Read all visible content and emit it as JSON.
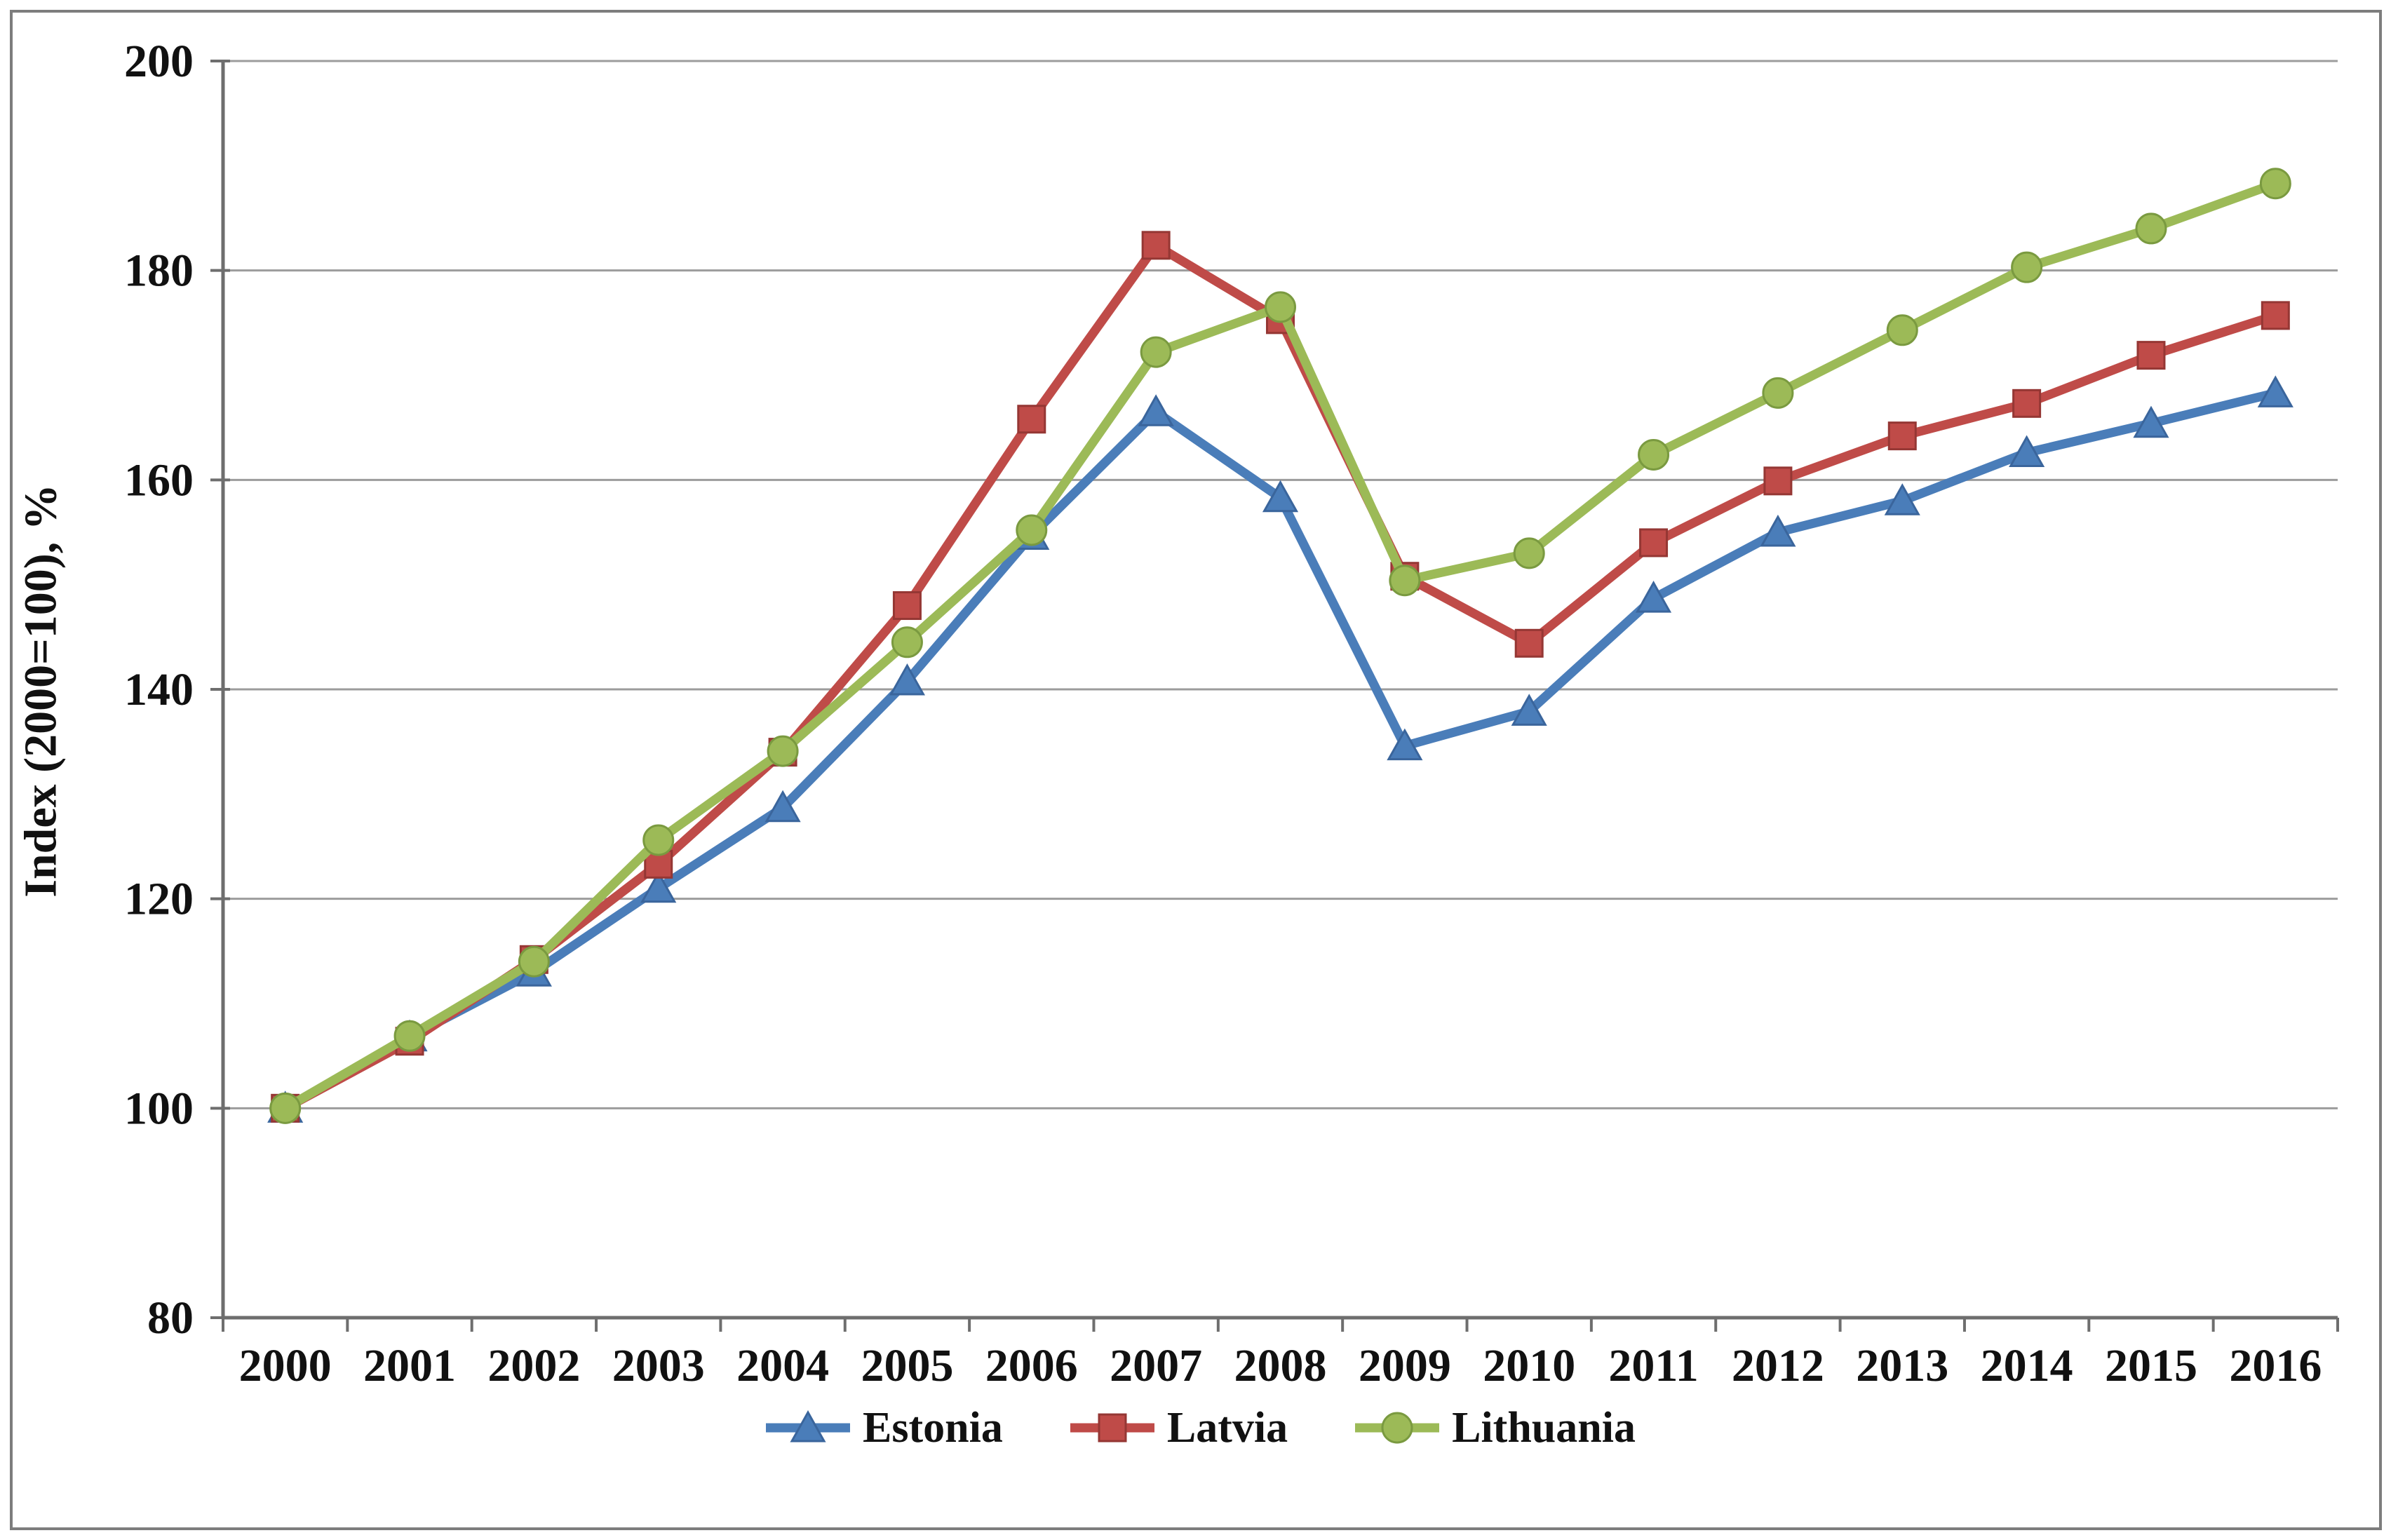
{
  "figure": {
    "background": "#ffffff",
    "border_color": "#7d7d7d",
    "axis_color": "#6e6e6e",
    "gridline_color": "#9c9c9c"
  },
  "chart_data": {
    "type": "line",
    "title": "",
    "xlabel": "",
    "ylabel": "Index (2000=100), %",
    "ylim": [
      80,
      200
    ],
    "ytick_step": 20,
    "yticks": [
      80,
      100,
      120,
      140,
      160,
      180,
      200
    ],
    "grid": true,
    "legend_position": "bottom",
    "categories": [
      "2000",
      "2001",
      "2002",
      "2003",
      "2004",
      "2005",
      "2006",
      "2007",
      "2008",
      "2009",
      "2010",
      "2011",
      "2012",
      "2013",
      "2014",
      "2015",
      "2016"
    ],
    "series": [
      {
        "name": "Estonia",
        "color": "#4a7db9",
        "marker_edge": "#3a659c",
        "marker": "triangle",
        "values": [
          100,
          106.8,
          113.0,
          121.0,
          128.7,
          140.8,
          154.7,
          166.5,
          158.3,
          134.6,
          137.9,
          148.7,
          155.0,
          158.0,
          162.6,
          165.4,
          168.3
        ]
      },
      {
        "name": "Latvia",
        "color": "#bf4b48",
        "marker_edge": "#953734",
        "marker": "square",
        "values": [
          100,
          106.4,
          114.2,
          123.3,
          134.0,
          148.0,
          165.8,
          182.4,
          175.3,
          150.8,
          144.4,
          154.0,
          159.9,
          164.2,
          167.3,
          171.9,
          175.7
        ]
      },
      {
        "name": "Lithuania",
        "color": "#9cba57",
        "marker_edge": "#7a9a40",
        "marker": "circle",
        "values": [
          100,
          106.9,
          114.0,
          125.6,
          134.1,
          144.5,
          155.2,
          172.2,
          176.5,
          150.4,
          153.0,
          162.4,
          168.3,
          174.3,
          180.3,
          184.0,
          188.3
        ]
      }
    ]
  }
}
